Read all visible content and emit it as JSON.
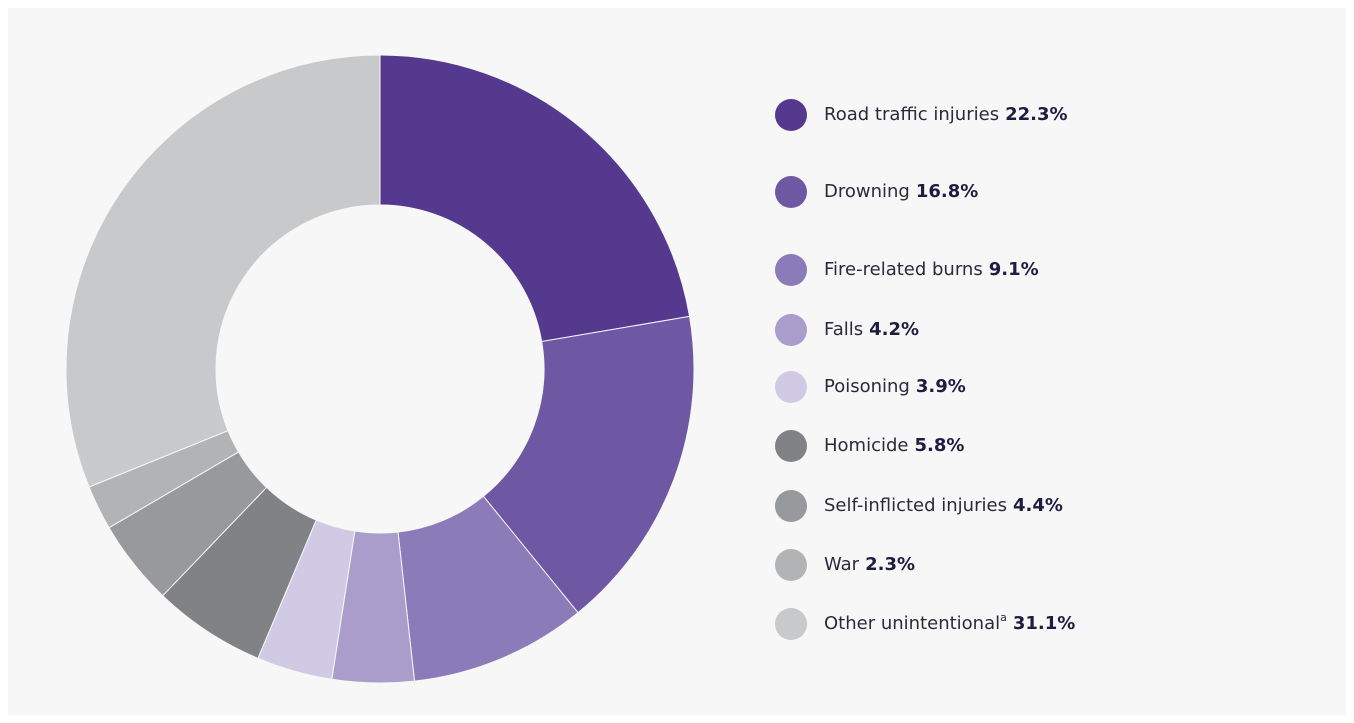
{
  "chart_data": {
    "type": "donut",
    "categories": [
      "Road traffic injuries",
      "Drowning",
      "Fire-related burns",
      "Falls",
      "Poisoning",
      "Homicide",
      "Self-inflicted injuries",
      "War",
      "Other unintential"
    ],
    "values": [
      22.3,
      16.8,
      9.1,
      4.2,
      3.9,
      5.8,
      4.4,
      2.3,
      31.1
    ],
    "value_labels": [
      "22.3%",
      "16.8%",
      "9.1%",
      "4.2%",
      "3.9%",
      "5.8%",
      "4.4%",
      "2.3%",
      "31.1%"
    ],
    "superscripts": [
      null,
      null,
      null,
      null,
      null,
      null,
      null,
      null,
      "a"
    ],
    "colors": [
      "#54398f",
      "#6f58a3",
      "#8b7bb8",
      "#aa9ccb",
      "#d1cae5",
      "#808285",
      "#98999c",
      "#b2b3b5",
      "#c8c9ca"
    ]
  }
}
